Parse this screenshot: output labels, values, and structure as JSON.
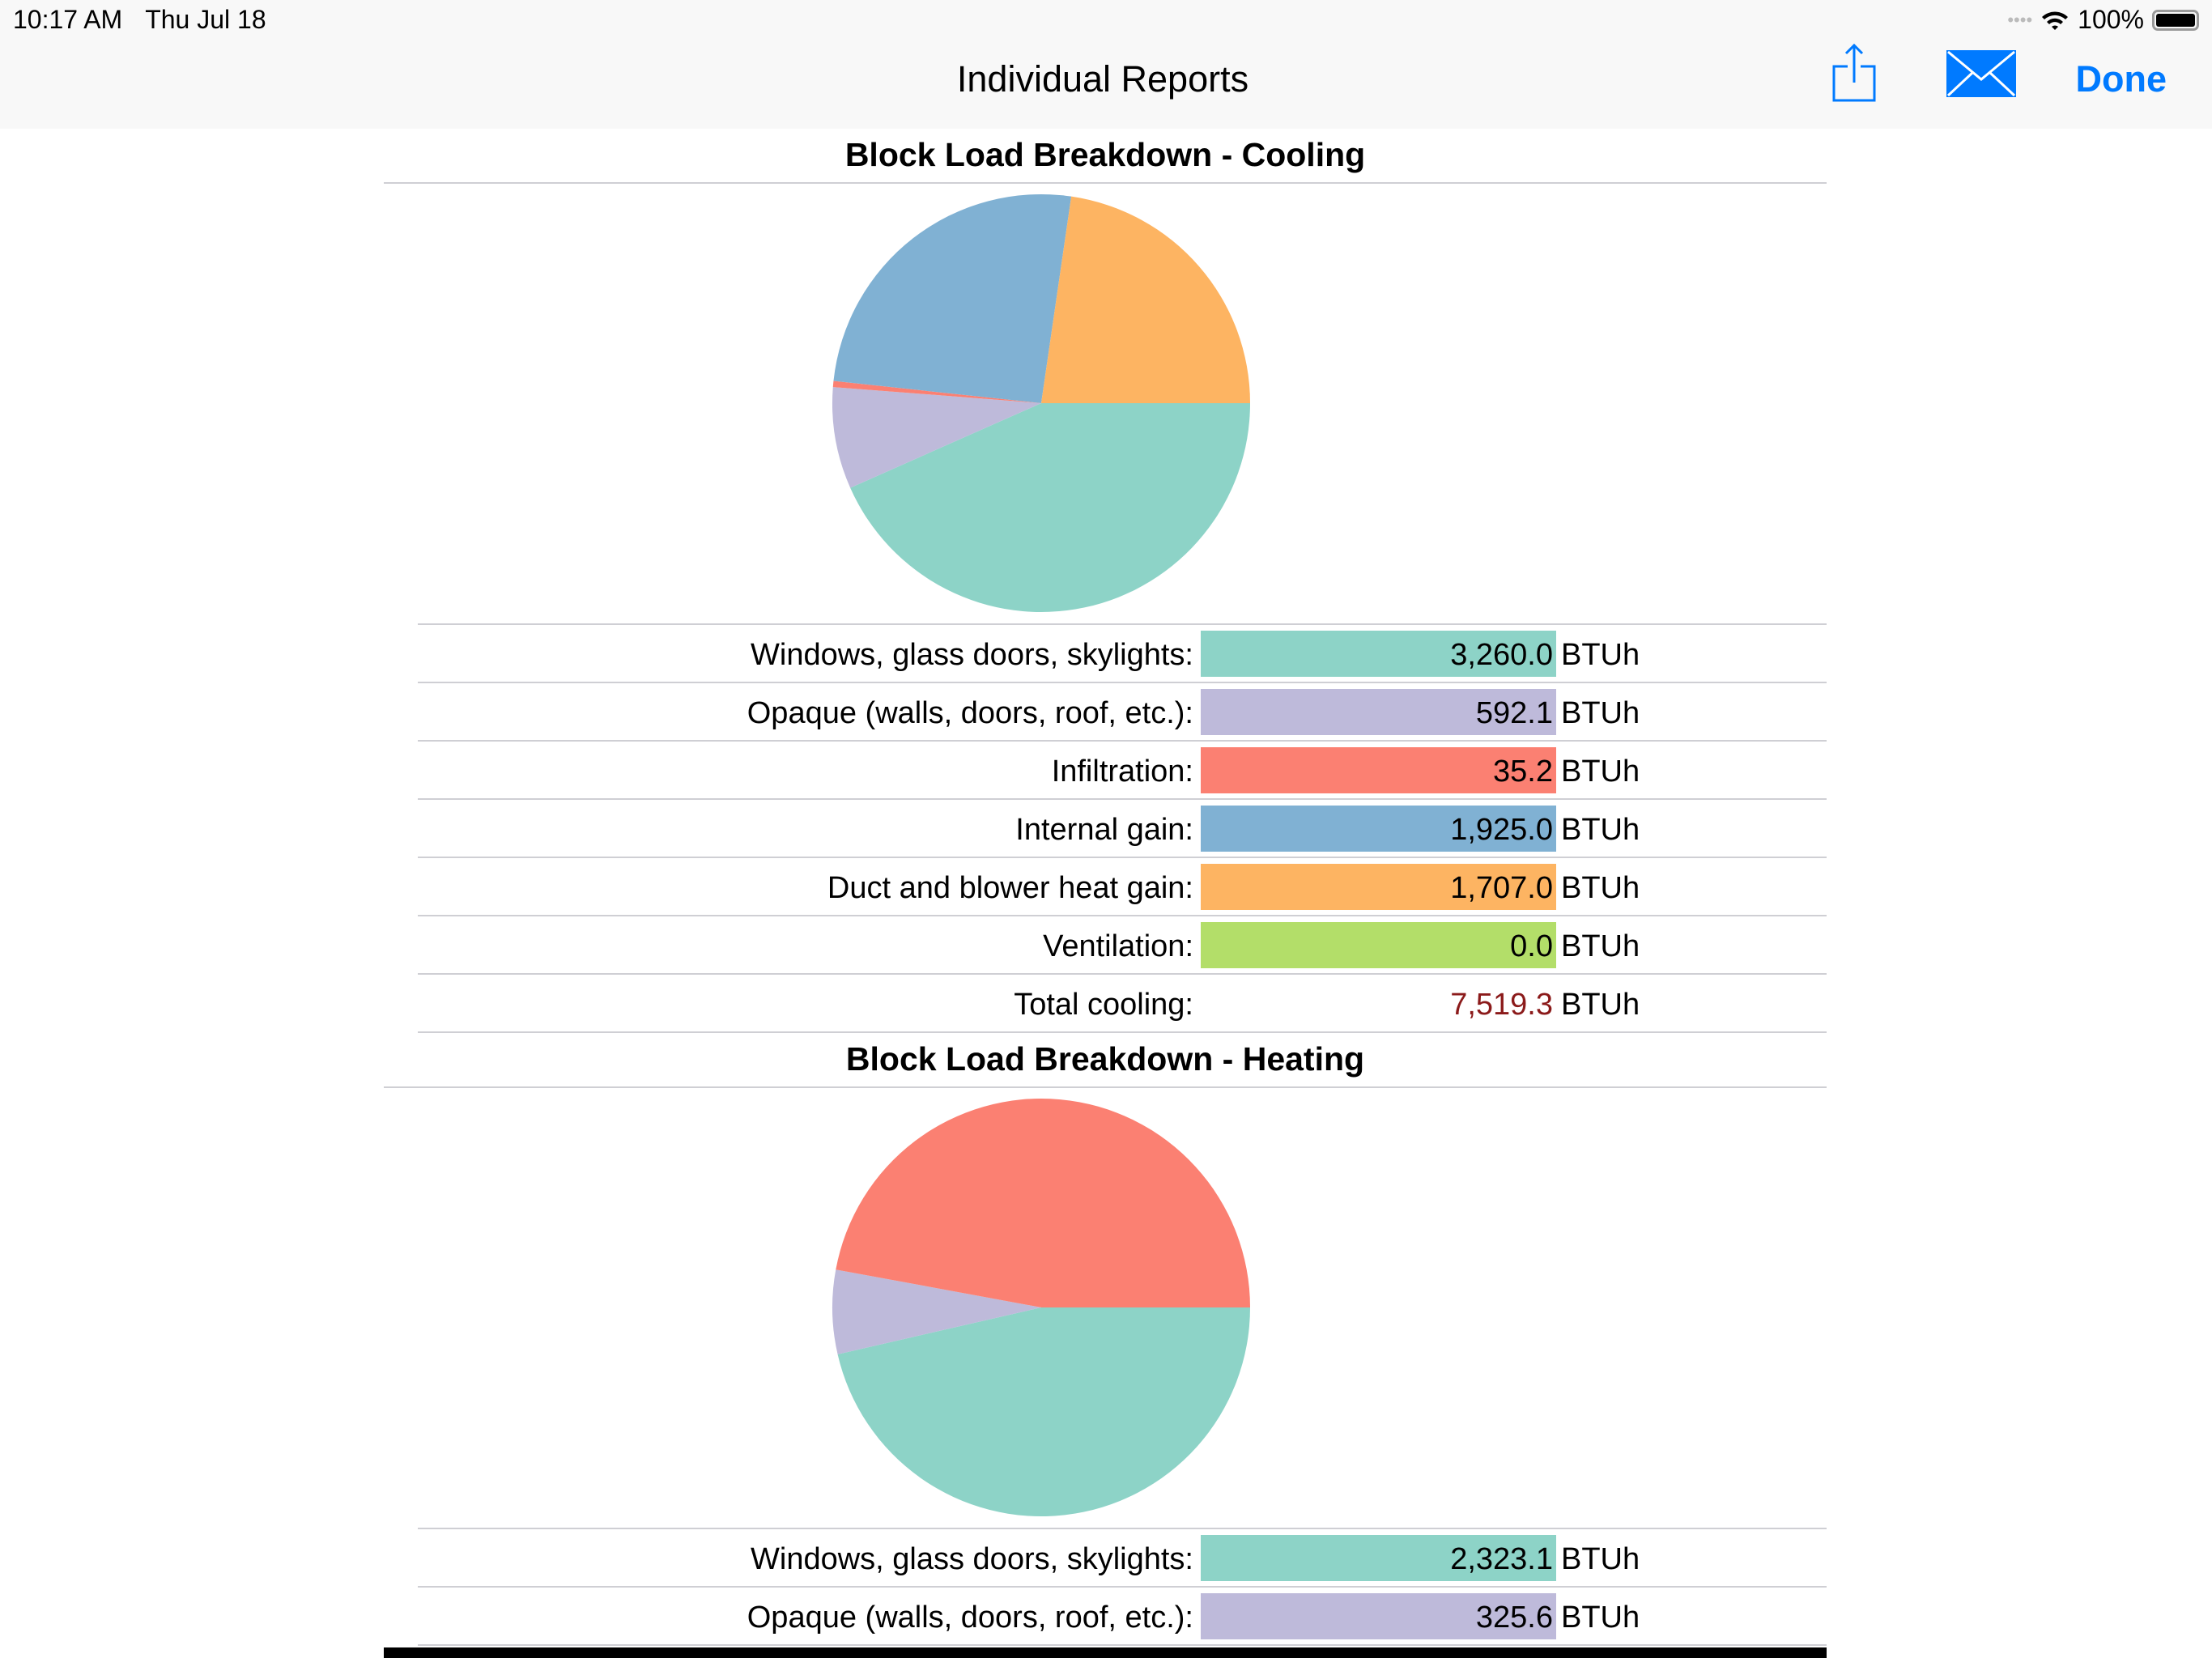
{
  "status_bar": {
    "time": "10:17 AM",
    "date": "Thu Jul 18",
    "battery": "100%"
  },
  "nav": {
    "title": "Individual Reports",
    "done_label": "Done",
    "share_icon": "share-icon",
    "mail_icon": "mail-icon"
  },
  "colors": {
    "accent": "#007aff",
    "windows": "#8DD3C7",
    "opaque": "#BEBADA",
    "infiltration": "#FB8072",
    "internal": "#80B1D3",
    "duct": "#FDB462",
    "ventilation": "#B3DE69",
    "total": "#8B1A1A"
  },
  "unit": "BTUh",
  "cooling": {
    "title": "Block Load Breakdown - Cooling",
    "rows": [
      {
        "label": "Windows, glass doors, skylights:",
        "value": "3,260.0",
        "color": "#8DD3C7"
      },
      {
        "label": "Opaque (walls, doors, roof, etc.):",
        "value": "592.1",
        "color": "#BEBADA"
      },
      {
        "label": "Infiltration:",
        "value": "35.2",
        "color": "#FB8072"
      },
      {
        "label": "Internal gain:",
        "value": "1,925.0",
        "color": "#80B1D3"
      },
      {
        "label": "Duct and blower heat gain:",
        "value": "1,707.0",
        "color": "#FDB462"
      },
      {
        "label": "Ventilation:",
        "value": "0.0",
        "color": "#B3DE69"
      }
    ],
    "total": {
      "label": "Total cooling:",
      "value": "7,519.3"
    }
  },
  "heating": {
    "title": "Block Load Breakdown - Heating",
    "rows": [
      {
        "label": "Windows, glass doors, skylights:",
        "value": "2,323.1",
        "color": "#8DD3C7"
      },
      {
        "label": "Opaque (walls, doors, roof, etc.):",
        "value": "325.6",
        "color": "#BEBADA"
      }
    ]
  },
  "chart_data": [
    {
      "type": "pie",
      "title": "Block Load Breakdown - Cooling",
      "categories": [
        "Windows, glass doors, skylights",
        "Opaque (walls, doors, roof, etc.)",
        "Infiltration",
        "Internal gain",
        "Duct and blower heat gain",
        "Ventilation"
      ],
      "values": [
        3260.0,
        592.1,
        35.2,
        1925.0,
        1707.0,
        0.0
      ],
      "colors": [
        "#8DD3C7",
        "#BEBADA",
        "#FB8072",
        "#80B1D3",
        "#FDB462",
        "#B3DE69"
      ]
    },
    {
      "type": "pie",
      "title": "Block Load Breakdown - Heating",
      "categories": [
        "Windows, glass doors, skylights",
        "Opaque (walls, doors, roof, etc.)",
        "Infiltration"
      ],
      "values": [
        2323.1,
        325.6,
        2358
      ],
      "colors": [
        "#8DD3C7",
        "#BEBADA",
        "#FB8072"
      ]
    }
  ]
}
